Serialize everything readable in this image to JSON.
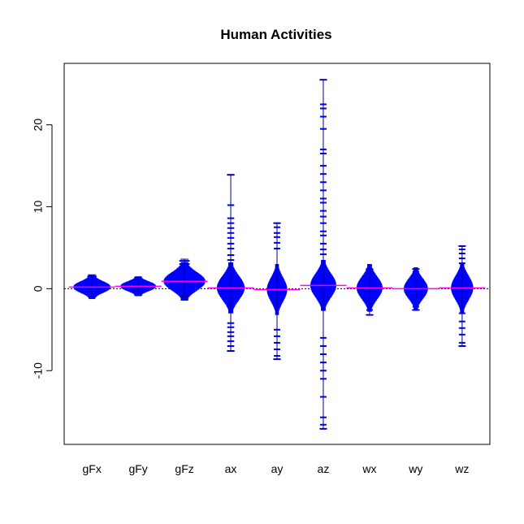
{
  "chart_data": {
    "type": "beanplot",
    "title": "Human Activities",
    "xlabel": "",
    "ylabel": "",
    "categories": [
      "gFx",
      "gFy",
      "gFz",
      "ax",
      "ay",
      "az",
      "wx",
      "wy",
      "wz"
    ],
    "ylim": [
      -19,
      27.5
    ],
    "yticks": [
      -10,
      0,
      10,
      20
    ],
    "overall_mean_line": 0,
    "colors": {
      "bean": "#0000ff",
      "outline": "#00008b",
      "mean": "#ff00ff"
    },
    "series": [
      {
        "name": "gFx",
        "mean": 0.2,
        "min": -1.0,
        "max": 1.7,
        "halfwidth": 0.4,
        "extra": [
          1.5,
          1.3,
          -0.7,
          -0.9
        ]
      },
      {
        "name": "gFy",
        "mean": 0.3,
        "min": -0.8,
        "max": 1.4,
        "halfwidth": 0.38,
        "extra": [
          1.2,
          1.0,
          -0.6
        ]
      },
      {
        "name": "gFz",
        "mean": 0.9,
        "min": -0.9,
        "max": 3.6,
        "halfwidth": 0.45,
        "extra": [
          3.4,
          3.0,
          2.6,
          2.2,
          -0.6
        ]
      },
      {
        "name": "ax",
        "mean": 0.1,
        "min": -7.6,
        "max": 13.9,
        "halfwidth": 0.3,
        "extra": [
          13.9,
          10.2,
          8.6,
          8.0,
          7.4,
          6.8,
          6.2,
          5.5,
          4.9,
          4.1,
          3.5,
          -4.2,
          -4.7,
          -5.3,
          -5.8,
          -6.4,
          -7.0,
          -7.6
        ]
      },
      {
        "name": "ay",
        "mean": -0.1,
        "min": -8.6,
        "max": 8.0,
        "halfwidth": 0.22,
        "extra": [
          8.0,
          7.5,
          6.8,
          6.3,
          5.6,
          4.9,
          -5.0,
          -5.8,
          -6.6,
          -7.4,
          -8.2,
          -8.6
        ]
      },
      {
        "name": "az",
        "mean": 0.4,
        "min": -17.1,
        "max": 25.5,
        "halfwidth": 0.28,
        "extra": [
          25.5,
          22.5,
          22.0,
          21.0,
          19.5,
          17.0,
          16.5,
          15.0,
          14.0,
          13.0,
          12.0,
          11.0,
          10.5,
          9.5,
          8.8,
          8.0,
          7.0,
          6.5,
          5.5,
          4.8,
          4.2,
          -6.0,
          -7.0,
          -8.0,
          -9.0,
          -10.0,
          -11.0,
          -13.2,
          -15.7,
          -16.6,
          -17.1
        ]
      },
      {
        "name": "wx",
        "mean": 0.1,
        "min": -3.2,
        "max": 2.4,
        "halfwidth": 0.28,
        "extra": [
          2.4,
          2.1,
          1.8,
          -2.0,
          -2.6,
          -3.2
        ]
      },
      {
        "name": "wy",
        "mean": 0.0,
        "min": -2.6,
        "max": 2.4,
        "halfwidth": 0.26,
        "extra": [
          2.4,
          2.1,
          1.7,
          -1.8,
          -2.2,
          -2.6
        ]
      },
      {
        "name": "wz",
        "mean": 0.1,
        "min": -7.0,
        "max": 5.2,
        "halfwidth": 0.24,
        "extra": [
          5.2,
          4.8,
          4.3,
          3.7,
          3.1,
          -3.0,
          -4.0,
          -4.8,
          -5.6,
          -6.6,
          -7.0
        ]
      }
    ]
  }
}
